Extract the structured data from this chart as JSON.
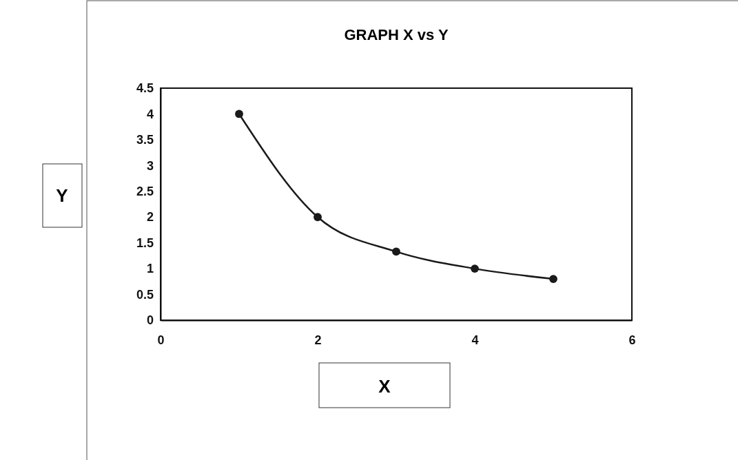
{
  "chart_data": {
    "type": "line",
    "title": "GRAPH X vs Y",
    "xlabel": "X",
    "ylabel": "Y",
    "x": [
      1,
      2,
      3,
      4,
      5
    ],
    "series": [
      {
        "color": "#1a1a1a",
        "values": [
          4,
          2,
          1.33,
          1,
          0.8
        ]
      }
    ],
    "xlim": [
      0,
      6
    ],
    "xticks": [
      0,
      2,
      4,
      6
    ],
    "ylim": [
      0,
      4.5
    ],
    "yticks": [
      0,
      0.5,
      1,
      1.5,
      2,
      2.5,
      3,
      3.5,
      4,
      4.5
    ],
    "grid": false,
    "marker": "circle",
    "line_style": "solid"
  }
}
